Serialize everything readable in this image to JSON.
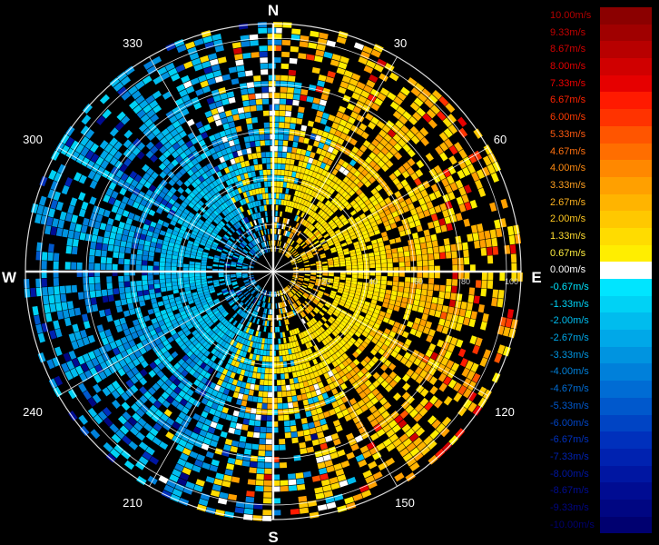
{
  "display": {
    "cardinals": {
      "north": "N",
      "east": "E",
      "south": "S",
      "west": "W"
    },
    "azimuth_labels": [
      "30",
      "60",
      "120",
      "150",
      "210",
      "240",
      "300",
      "330"
    ],
    "range_labels": [
      "20",
      "40",
      "60",
      "80",
      "100"
    ]
  },
  "legend": {
    "entries": [
      {
        "label": "10.00m/s",
        "color": "#8b0000",
        "text_color": "#b40000"
      },
      {
        "label": "9.33m/s",
        "color": "#a00000",
        "text_color": "#c40000"
      },
      {
        "label": "8.67m/s",
        "color": "#b80000",
        "text_color": "#d40000"
      },
      {
        "label": "8.00m/s",
        "color": "#d00000",
        "text_color": "#e00000"
      },
      {
        "label": "7.33m/s",
        "color": "#e60000",
        "text_color": "#f00000"
      },
      {
        "label": "6.67m/s",
        "color": "#ff1a00",
        "text_color": "#ff2200"
      },
      {
        "label": "6.00m/s",
        "color": "#ff3300",
        "text_color": "#ff3a00"
      },
      {
        "label": "5.33m/s",
        "color": "#ff5500",
        "text_color": "#ff5a10"
      },
      {
        "label": "4.67m/s",
        "color": "#ff6e00",
        "text_color": "#ff7010"
      },
      {
        "label": "4.00m/s",
        "color": "#ff8800",
        "text_color": "#ff8a10"
      },
      {
        "label": "3.33m/s",
        "color": "#ffa000",
        "text_color": "#ffa020"
      },
      {
        "label": "2.67m/s",
        "color": "#ffb400",
        "text_color": "#ffb420"
      },
      {
        "label": "2.00m/s",
        "color": "#ffc800",
        "text_color": "#ffc820"
      },
      {
        "label": "1.33m/s",
        "color": "#ffdc00",
        "text_color": "#ffdc30"
      },
      {
        "label": "0.67m/s",
        "color": "#ffee00",
        "text_color": "#ffee40"
      },
      {
        "label": "0.00m/s",
        "color": "#ffffff",
        "text_color": "#ffffff"
      },
      {
        "label": "-0.67m/s",
        "color": "#00e5ff",
        "text_color": "#00e5ff"
      },
      {
        "label": "-1.33m/s",
        "color": "#00d2f5",
        "text_color": "#00d2f5"
      },
      {
        "label": "-2.00m/s",
        "color": "#00bcee",
        "text_color": "#00bcee"
      },
      {
        "label": "-2.67m/s",
        "color": "#00a8e8",
        "text_color": "#00a8e8"
      },
      {
        "label": "-3.33m/s",
        "color": "#0094e0",
        "text_color": "#0094e0"
      },
      {
        "label": "-4.00m/s",
        "color": "#0080da",
        "text_color": "#0080da"
      },
      {
        "label": "-4.67m/s",
        "color": "#006cd4",
        "text_color": "#006cd4"
      },
      {
        "label": "-5.33m/s",
        "color": "#0058cc",
        "text_color": "#0058cc"
      },
      {
        "label": "-6.00m/s",
        "color": "#0044c4",
        "text_color": "#0044c4"
      },
      {
        "label": "-6.67m/s",
        "color": "#0030bc",
        "text_color": "#0030bc"
      },
      {
        "label": "-7.33m/s",
        "color": "#0022b0",
        "text_color": "#0022b0"
      },
      {
        "label": "-8.00m/s",
        "color": "#0016a2",
        "text_color": "#0016a2"
      },
      {
        "label": "-8.67m/s",
        "color": "#000c92",
        "text_color": "#000c92"
      },
      {
        "label": "-9.33m/s",
        "color": "#000682",
        "text_color": "#000682"
      },
      {
        "label": "-10.00m/s",
        "color": "#000070",
        "text_color": "#000070"
      }
    ]
  }
}
